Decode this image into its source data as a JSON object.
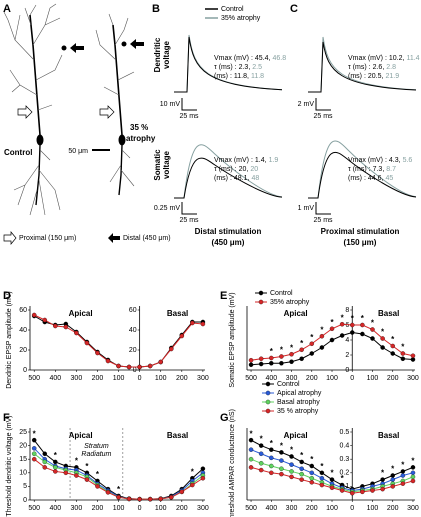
{
  "panels": {
    "A": {
      "letter": "A",
      "control": "Control",
      "atrophy": [
        "35 %",
        "atrophy"
      ],
      "scale": "50 μm",
      "proximal": "Proximal (150 μm)",
      "distal": "Distal (450 μm)"
    },
    "B": {
      "letter": "B",
      "legend": [
        "Control",
        "35% atrophy"
      ],
      "colors": [
        "#000000",
        "#86a0a0"
      ],
      "dendritic_label": [
        "Dendritic",
        "voltage"
      ],
      "somatic_label": [
        "Somatic",
        "voltage"
      ],
      "dendritic": {
        "rows": [
          {
            "label": "Vmax (mV) :",
            "control": 45.4,
            "atrophy": 46.8
          },
          {
            "label": "τ (ms) :",
            "control": 2.3,
            "atrophy": 2.5
          },
          {
            "label": "(ms) :",
            "control": 11.8,
            "atrophy": 11.8
          }
        ],
        "scale_v": "10 mV",
        "scale_t": "25 ms"
      },
      "somatic": {
        "rows": [
          {
            "label": "Vmax (mV) :",
            "control": 1.4,
            "atrophy": 1.9
          },
          {
            "label": "τ (ms) :",
            "control": 20,
            "atrophy": 20
          },
          {
            "label": "(ms) :",
            "control": 48.1,
            "atrophy": 48
          }
        ],
        "scale_v": "0.25 mV",
        "scale_t": "25 ms"
      },
      "caption": [
        "Distal stimulation",
        "(450 μm)"
      ]
    },
    "C": {
      "letter": "C",
      "dendritic": {
        "rows": [
          {
            "label": "Vmax (mV) :",
            "control": 10.2,
            "atrophy": 11.4
          },
          {
            "label": "τ (ms) :",
            "control": 2.6,
            "atrophy": 2.8
          },
          {
            "label": "(ms) :",
            "control": 20.5,
            "atrophy": 21.9
          }
        ],
        "scale_v": "2 mV",
        "scale_t": "25 ms"
      },
      "somatic": {
        "rows": [
          {
            "label": "Vmax (mV) :",
            "control": 4.3,
            "atrophy": 5.6
          },
          {
            "label": "τ (ms) :",
            "control": 7.3,
            "atrophy": 8.7
          },
          {
            "label": "(ms) :",
            "control": 44.6,
            "atrophy": 45
          }
        ],
        "scale_v": "1 mV",
        "scale_t": "25 ms"
      },
      "caption": [
        "Proximal stimulation",
        "(150 μm)"
      ]
    },
    "separator": ","
  },
  "chart_data": [
    {
      "type": "line",
      "panel": "D",
      "ylabel": "Dendritic EPSP amplitude (mV)",
      "region_labels": [
        "Apical",
        "Basal"
      ],
      "x": [
        -500,
        -450,
        -400,
        -350,
        -300,
        -250,
        -200,
        -150,
        -100,
        -50,
        0,
        50,
        100,
        150,
        200,
        250,
        300
      ],
      "xlim": [
        -520,
        310
      ],
      "xticks": [
        {
          "value": -500,
          "label": "500"
        },
        {
          "value": -400,
          "label": "400"
        },
        {
          "value": -300,
          "label": "300"
        },
        {
          "value": -200,
          "label": "200"
        },
        {
          "value": -100,
          "label": "100"
        },
        0,
        100,
        200,
        300
      ],
      "ylim": [
        0,
        60
      ],
      "yticks": [
        0,
        20,
        40,
        60
      ],
      "tick_labels_at": [
        "left",
        "zero"
      ],
      "series": [
        {
          "color": "#000000",
          "values": [
            54,
            48,
            45,
            46,
            38,
            28,
            18,
            10,
            4,
            3,
            3,
            4,
            8,
            22,
            35,
            48,
            48
          ]
        },
        {
          "color": "#d62728",
          "values": [
            55,
            50,
            44,
            43,
            37,
            27,
            17,
            9,
            4,
            3,
            3,
            4,
            8,
            21,
            34,
            47,
            46
          ]
        }
      ]
    },
    {
      "type": "line",
      "panel": "E",
      "ylabel": "Somatic EPSP amplitude (mV)",
      "region_labels": [
        "Apical",
        "Basal"
      ],
      "x": [
        -500,
        -450,
        -400,
        -350,
        -300,
        -250,
        -200,
        -150,
        -100,
        -50,
        0,
        50,
        100,
        150,
        200,
        250,
        300
      ],
      "xlim": [
        -520,
        310
      ],
      "xticks": [
        {
          "value": -500,
          "label": "500"
        },
        {
          "value": -400,
          "label": "400"
        },
        {
          "value": -300,
          "label": "300"
        },
        {
          "value": -200,
          "label": "200"
        },
        {
          "value": -100,
          "label": "100"
        },
        0,
        100,
        200,
        300
      ],
      "ylim": [
        0,
        8
      ],
      "yticks": [
        0,
        2,
        4,
        6,
        8
      ],
      "tick_labels_at": [
        "zero"
      ],
      "significance": {
        "label": "*",
        "x": [
          -400,
          -350,
          -300,
          -250,
          -200,
          -150,
          -100,
          -50,
          0,
          50,
          100,
          150,
          200,
          250
        ]
      },
      "series": [
        {
          "name": "Control",
          "color": "#000000",
          "values": [
            0.7,
            0.8,
            0.9,
            0.9,
            1.1,
            1.5,
            2.2,
            3.0,
            4.0,
            4.6,
            5.0,
            4.8,
            4.2,
            3.0,
            2.2,
            1.5,
            1.4
          ]
        },
        {
          "name": "35% atrophy",
          "color": "#d62728",
          "values": [
            1.3,
            1.5,
            1.6,
            1.8,
            2.1,
            2.7,
            3.5,
            4.5,
            5.5,
            6.1,
            6.0,
            6.0,
            5.4,
            4.2,
            3.2,
            2.2,
            1.9
          ]
        }
      ]
    },
    {
      "type": "line",
      "panel": "F",
      "ylabel": "Threshold dendritic voltage (mV)",
      "region_labels": [
        "Apical",
        "Basal"
      ],
      "annotation": [
        "Stratum",
        "Radiatum"
      ],
      "vlines": [
        -330,
        -80
      ],
      "x": [
        -500,
        -450,
        -400,
        -350,
        -300,
        -250,
        -200,
        -150,
        -100,
        -50,
        0,
        50,
        100,
        150,
        200,
        250,
        300
      ],
      "xlim": [
        -520,
        310
      ],
      "xticks": [
        {
          "value": -500,
          "label": "500"
        },
        {
          "value": -400,
          "label": "400"
        },
        {
          "value": -300,
          "label": "300"
        },
        {
          "value": -200,
          "label": "200"
        },
        {
          "value": -100,
          "label": "100"
        },
        0,
        100,
        200,
        300
      ],
      "ylim": [
        0,
        25
      ],
      "yticks": [
        0,
        5,
        10,
        15,
        20,
        25
      ],
      "tick_labels_at": [
        "left"
      ],
      "significance": {
        "label": "*",
        "x": [
          -500,
          -400,
          -300,
          -250,
          -200,
          -100,
          250
        ]
      },
      "series": [
        {
          "color": "#000000",
          "values": [
            22,
            17,
            14,
            12.5,
            12,
            10,
            7,
            4,
            1.5,
            0.5,
            0.3,
            0.3,
            0.5,
            1.5,
            4,
            8,
            11.5
          ]
        },
        {
          "color": "#2a5bd7",
          "values": [
            19,
            15,
            12.5,
            11.5,
            11,
            9,
            6,
            3.5,
            1.2,
            0.4,
            0.3,
            0.3,
            0.4,
            1.2,
            3.5,
            7,
            10
          ]
        },
        {
          "color": "#5fd35f",
          "values": [
            17,
            14,
            12,
            11,
            10,
            8.5,
            5.5,
            3,
            1,
            0.4,
            0.3,
            0.3,
            0.4,
            1,
            3,
            6,
            9
          ]
        },
        {
          "color": "#d62728",
          "values": [
            15,
            12,
            10.5,
            10,
            9,
            7.5,
            5,
            2.8,
            1,
            0.4,
            0.3,
            0.3,
            0.4,
            1,
            3,
            5.5,
            8
          ]
        }
      ]
    },
    {
      "type": "line",
      "panel": "G",
      "ylabel": "Threshold AMPAR conductance (nS)",
      "region_labels": [
        "Apical",
        "Basal"
      ],
      "x": [
        -500,
        -450,
        -400,
        -350,
        -300,
        -250,
        -200,
        -150,
        -100,
        -50,
        0,
        50,
        100,
        150,
        200,
        250,
        300
      ],
      "xlim": [
        -520,
        310
      ],
      "xticks": [
        {
          "value": -500,
          "label": "500"
        },
        {
          "value": -400,
          "label": "400"
        },
        {
          "value": -300,
          "label": "300"
        },
        {
          "value": -200,
          "label": "200"
        },
        {
          "value": -100,
          "label": "100"
        },
        0,
        100,
        200,
        300
      ],
      "ylim": [
        0,
        0.5
      ],
      "yticks": [
        0.1,
        0.2,
        0.3,
        0.4,
        0.5
      ],
      "tick_labels_at": [
        "zero"
      ],
      "significance": {
        "label": "*",
        "x": [
          -500,
          -450,
          -400,
          -350,
          -300,
          -250,
          -200,
          -150,
          -100,
          -50,
          150,
          200,
          250,
          300
        ]
      },
      "series": [
        {
          "name": "Control",
          "color": "#000000",
          "values": [
            0.44,
            0.4,
            0.37,
            0.35,
            0.32,
            0.28,
            0.25,
            0.2,
            0.15,
            0.11,
            0.08,
            0.1,
            0.12,
            0.15,
            0.18,
            0.21,
            0.24
          ]
        },
        {
          "name": "Apical atrophy",
          "color": "#2a5bd7",
          "values": [
            0.37,
            0.34,
            0.31,
            0.29,
            0.26,
            0.23,
            0.2,
            0.16,
            0.12,
            0.09,
            0.07,
            0.08,
            0.1,
            0.12,
            0.15,
            0.18,
            0.2
          ]
        },
        {
          "name": "Basal atrophy",
          "color": "#5fd35f",
          "values": [
            0.3,
            0.27,
            0.25,
            0.23,
            0.21,
            0.19,
            0.16,
            0.13,
            0.1,
            0.08,
            0.06,
            0.07,
            0.08,
            0.1,
            0.12,
            0.14,
            0.17
          ]
        },
        {
          "name": "35 % atrophy",
          "color": "#d62728",
          "values": [
            0.24,
            0.22,
            0.2,
            0.19,
            0.17,
            0.15,
            0.13,
            0.11,
            0.09,
            0.07,
            0.05,
            0.06,
            0.07,
            0.08,
            0.1,
            0.12,
            0.14
          ]
        }
      ]
    }
  ]
}
